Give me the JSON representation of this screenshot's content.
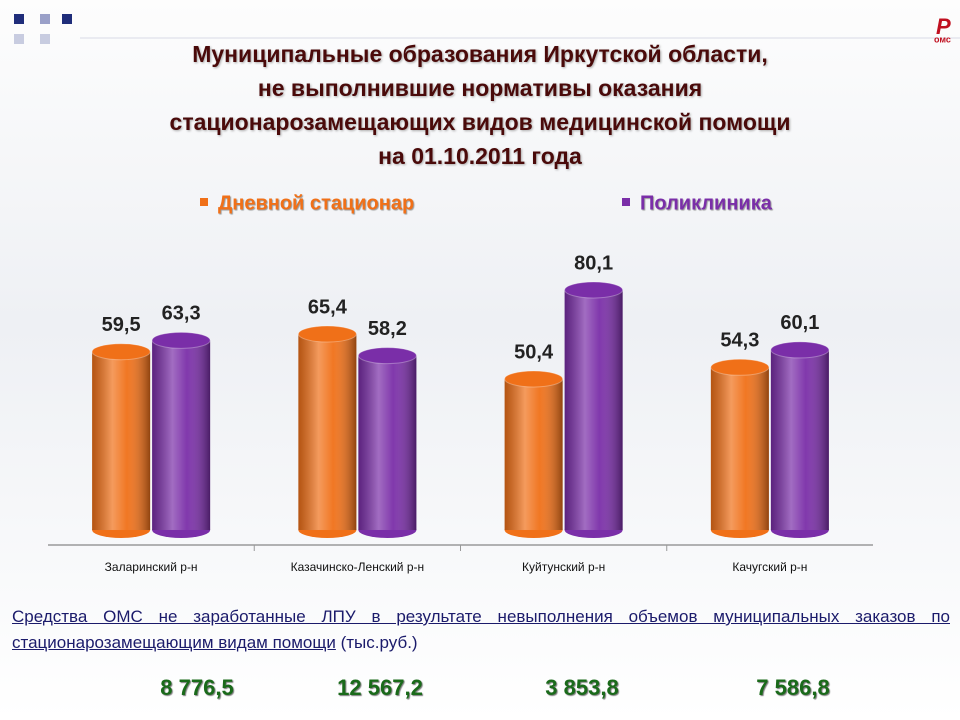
{
  "logo": "омс",
  "chart_data": {
    "type": "bar",
    "title": [
      "Муниципальные образования Иркутской области,",
      "не выполнившие нормативы оказания",
      "стационарозамещающих видов медицинской помощи",
      "на 01.10.2011 года"
    ],
    "categories": [
      "Заларинский р-н",
      "Казачинско-Ленский р-н",
      "Куйтунский р-н",
      "Качугский р-н"
    ],
    "series": [
      {
        "name": "Дневной стационар",
        "color": "#f07018",
        "values": [
          59.5,
          65.4,
          50.4,
          54.3
        ],
        "value_labels": [
          "59,5",
          "65,4",
          "50,4",
          "54,3"
        ]
      },
      {
        "name": "Поликлиника",
        "color": "#7a2ea8",
        "values": [
          63.3,
          58.2,
          80.1,
          60.1
        ],
        "value_labels": [
          "63,3",
          "58,2",
          "80,1",
          "60,1"
        ]
      }
    ]
  },
  "footer": {
    "text": "Средства ОМС не заработанные ЛПУ в результате невыполнения объемов муниципальных заказов по стационарозамещающим видам помощи",
    "unit": "(тыс.руб.)",
    "amounts": [
      "8 776,5",
      "12 567,2",
      "3 853,8",
      "7 586,8"
    ]
  }
}
